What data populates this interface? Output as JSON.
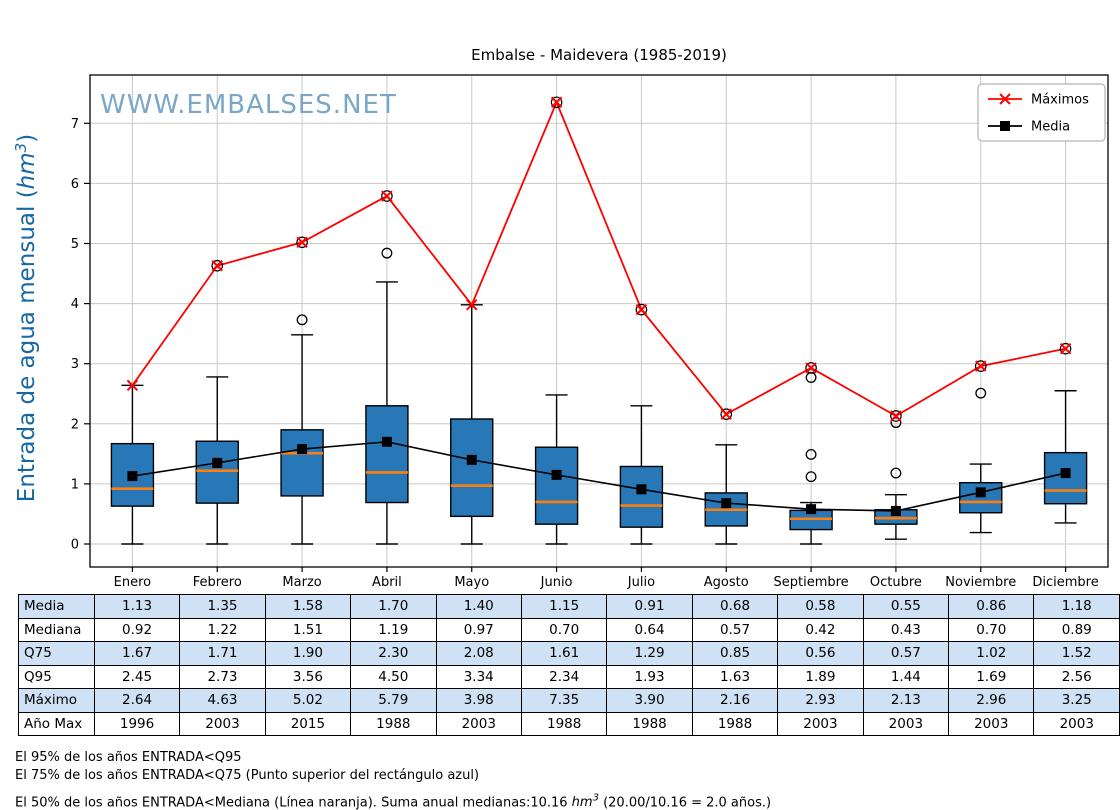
{
  "title": "Embalse - Maidevera (1985-2019)",
  "watermark": "WWW.EMBALSES.NET",
  "chart_data": {
    "type": "boxplot+lines",
    "categories": [
      "Enero",
      "Febrero",
      "Marzo",
      "Abril",
      "Mayo",
      "Junio",
      "Julio",
      "Agosto",
      "Septiembre",
      "Octubre",
      "Noviembre",
      "Diciembre"
    ],
    "ylabel_pre": "Entrada de agua mensual (",
    "ylabel_italic": "hm",
    "ylabel_sup": "3",
    "ylabel_post": ")",
    "yticks": [
      0,
      1,
      2,
      3,
      4,
      5,
      6,
      7
    ],
    "ylim": [
      -0.38,
      7.8
    ],
    "grid": true,
    "colors": {
      "box_fill": "#2878b8",
      "median": "#ff7f0e",
      "max_line": "#ff0000",
      "mean_line": "#000000",
      "watermark": "#7aa6c8",
      "ylabel": "#1768a2",
      "grid": "#c8c8c8"
    },
    "legend": {
      "position": "top-right",
      "entries": [
        {
          "label": "Máximos",
          "color": "#ff0000",
          "marker": "x"
        },
        {
          "label": "Media",
          "color": "#000000",
          "marker": "square"
        }
      ]
    },
    "series": [
      {
        "name": "Máximos",
        "type": "line",
        "marker": "x",
        "color": "#ff0000",
        "values": [
          2.64,
          4.63,
          5.02,
          5.79,
          3.98,
          7.35,
          3.9,
          2.16,
          2.93,
          2.13,
          2.96,
          3.25
        ],
        "circled": [
          false,
          true,
          true,
          true,
          false,
          true,
          true,
          true,
          true,
          true,
          true,
          true
        ]
      },
      {
        "name": "Media",
        "type": "line",
        "marker": "square",
        "color": "#000000",
        "values": [
          1.13,
          1.35,
          1.58,
          1.7,
          1.4,
          1.15,
          0.91,
          0.68,
          0.58,
          0.55,
          0.86,
          1.18
        ]
      }
    ],
    "boxes": {
      "whisker_low": [
        0,
        0,
        0,
        0,
        0,
        0,
        0,
        0,
        0,
        0.08,
        0.19,
        0.35
      ],
      "q1": [
        0.63,
        0.68,
        0.8,
        0.69,
        0.46,
        0.33,
        0.28,
        0.3,
        0.24,
        0.33,
        0.52,
        0.67
      ],
      "median": [
        0.92,
        1.22,
        1.51,
        1.19,
        0.97,
        0.7,
        0.64,
        0.57,
        0.42,
        0.43,
        0.7,
        0.89
      ],
      "q3": [
        1.67,
        1.71,
        1.9,
        2.3,
        2.08,
        1.61,
        1.29,
        0.85,
        0.56,
        0.57,
        1.02,
        1.52
      ],
      "whisker_high": [
        2.64,
        2.78,
        3.48,
        4.36,
        3.98,
        2.48,
        2.3,
        1.65,
        0.69,
        0.82,
        1.33,
        2.55
      ],
      "outliers": [
        [],
        [],
        [
          3.73
        ],
        [
          4.84
        ],
        [],
        [],
        [],
        [],
        [
          1.12,
          1.49,
          2.77
        ],
        [
          1.18,
          2.02
        ],
        [
          2.51
        ],
        []
      ]
    }
  },
  "table": {
    "highlight_color": "#cfe1f4",
    "rows": [
      {
        "label": "Media",
        "highlight": true,
        "values": [
          "1.13",
          "1.35",
          "1.58",
          "1.70",
          "1.40",
          "1.15",
          "0.91",
          "0.68",
          "0.58",
          "0.55",
          "0.86",
          "1.18"
        ]
      },
      {
        "label": "Mediana",
        "highlight": false,
        "values": [
          "0.92",
          "1.22",
          "1.51",
          "1.19",
          "0.97",
          "0.70",
          "0.64",
          "0.57",
          "0.42",
          "0.43",
          "0.70",
          "0.89"
        ]
      },
      {
        "label": "Q75",
        "highlight": true,
        "values": [
          "1.67",
          "1.71",
          "1.90",
          "2.30",
          "2.08",
          "1.61",
          "1.29",
          "0.85",
          "0.56",
          "0.57",
          "1.02",
          "1.52"
        ]
      },
      {
        "label": "Q95",
        "highlight": false,
        "values": [
          "2.45",
          "2.73",
          "3.56",
          "4.50",
          "3.34",
          "2.34",
          "1.93",
          "1.63",
          "1.89",
          "1.44",
          "1.69",
          "2.56"
        ]
      },
      {
        "label": "Máximo",
        "highlight": true,
        "values": [
          "2.64",
          "4.63",
          "5.02",
          "5.79",
          "3.98",
          "7.35",
          "3.90",
          "2.16",
          "2.93",
          "2.13",
          "2.96",
          "3.25"
        ]
      },
      {
        "label": "Año Max",
        "highlight": false,
        "values": [
          "1996",
          "2003",
          "2015",
          "1988",
          "2003",
          "1988",
          "1988",
          "1988",
          "2003",
          "2003",
          "2003",
          "2003"
        ]
      }
    ]
  },
  "footnotes": {
    "line1": "El 95% de los años ENTRADA<Q95",
    "line2": "El 75% de los años ENTRADA<Q75 (Punto superior del rectángulo azul)",
    "line3_pre": "El 50% de los años ENTRADA<Mediana (Línea naranja). Suma anual medianas:10.16 ",
    "line3_hm": "hm",
    "line3_sup": "3",
    "line3_post": " (20.00/10.16 = 2.0 años.)"
  }
}
